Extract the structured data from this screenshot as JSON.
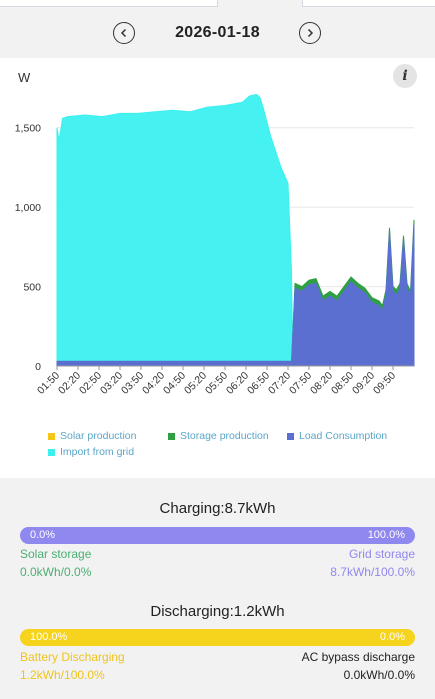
{
  "header": {
    "date": "2026-01-18",
    "prev_icon": "chevron-left-icon",
    "next_icon": "chevron-right-icon"
  },
  "chart_data": {
    "type": "area",
    "ylabel": "W",
    "ylim": [
      0,
      1750
    ],
    "yticks": [
      0,
      500,
      1000,
      1500
    ],
    "ytick_labels": [
      "0",
      "500",
      "1,000",
      "1,500"
    ],
    "xtick_labels": [
      "01:50",
      "02:20",
      "02:50",
      "03:20",
      "03:50",
      "04:20",
      "04:50",
      "05:20",
      "05:50",
      "06:20",
      "06:50",
      "07:20",
      "07:50",
      "08:20",
      "08:50",
      "09:20",
      "09:50"
    ],
    "x_minutes_start": 110,
    "x_minutes_end": 595,
    "grid": true,
    "legend": "bottom",
    "series": [
      {
        "name": "Solar production",
        "color": "#f5c518",
        "points": []
      },
      {
        "name": "Storage production",
        "color": "#2ea043",
        "points": [
          [
            110,
            0
          ],
          [
            445,
            0
          ],
          [
            450,
            520
          ],
          [
            460,
            500
          ],
          [
            470,
            540
          ],
          [
            480,
            550
          ],
          [
            490,
            440
          ],
          [
            500,
            470
          ],
          [
            510,
            440
          ],
          [
            520,
            500
          ],
          [
            530,
            560
          ],
          [
            540,
            520
          ],
          [
            550,
            490
          ],
          [
            560,
            430
          ],
          [
            570,
            410
          ],
          [
            575,
            380
          ],
          [
            580,
            480
          ],
          [
            585,
            870
          ],
          [
            590,
            500
          ],
          [
            595,
            480
          ],
          [
            600,
            520
          ],
          [
            605,
            820
          ],
          [
            610,
            520
          ],
          [
            615,
            470
          ],
          [
            620,
            920
          ]
        ]
      },
      {
        "name": "Load Consumption",
        "color": "#5a6fd0",
        "points": [
          [
            110,
            30
          ],
          [
            300,
            30
          ],
          [
            445,
            30
          ],
          [
            450,
            490
          ],
          [
            460,
            470
          ],
          [
            470,
            510
          ],
          [
            480,
            520
          ],
          [
            490,
            410
          ],
          [
            500,
            440
          ],
          [
            510,
            410
          ],
          [
            520,
            470
          ],
          [
            530,
            530
          ],
          [
            540,
            490
          ],
          [
            550,
            460
          ],
          [
            560,
            400
          ],
          [
            570,
            380
          ],
          [
            575,
            350
          ],
          [
            580,
            450
          ],
          [
            585,
            850
          ],
          [
            590,
            470
          ],
          [
            595,
            450
          ],
          [
            600,
            490
          ],
          [
            605,
            800
          ],
          [
            610,
            490
          ],
          [
            615,
            440
          ],
          [
            620,
            890
          ]
        ]
      },
      {
        "name": "Import from grid",
        "color": "#3cf0f0",
        "points": [
          [
            110,
            1500
          ],
          [
            113,
            1420
          ],
          [
            118,
            1560
          ],
          [
            125,
            1570
          ],
          [
            150,
            1580
          ],
          [
            175,
            1570
          ],
          [
            200,
            1590
          ],
          [
            225,
            1590
          ],
          [
            250,
            1600
          ],
          [
            275,
            1610
          ],
          [
            300,
            1600
          ],
          [
            325,
            1630
          ],
          [
            350,
            1640
          ],
          [
            375,
            1660
          ],
          [
            385,
            1700
          ],
          [
            395,
            1710
          ],
          [
            400,
            1690
          ],
          [
            405,
            1620
          ],
          [
            415,
            1450
          ],
          [
            430,
            1250
          ],
          [
            440,
            1150
          ],
          [
            445,
            600
          ],
          [
            447,
            0
          ]
        ]
      }
    ]
  },
  "legend_items": [
    "Solar production",
    "Storage production",
    "Load Consumption",
    "Import from grid"
  ],
  "charging": {
    "title": "Charging:8.7kWh",
    "bar_left": "0.0%",
    "bar_right": "100.0%",
    "left_label": "Solar storage",
    "left_value": "0.0kWh/0.0%",
    "right_label": "Grid storage",
    "right_value": "8.7kWh/100.0%",
    "grid_fraction": 1.0,
    "color_bar": "#8f88ee",
    "color_left": "#4caf73",
    "color_right": "#8f88ee"
  },
  "discharging": {
    "title": "Discharging:1.2kWh",
    "bar_left": "100.0%",
    "bar_right": "0.0%",
    "left_label": "Battery Discharging",
    "left_value": "1.2kWh/100.0%",
    "right_label": "AC bypass discharge",
    "right_value": "0.0kWh/0.0%",
    "battery_fraction": 1.0,
    "color_bar": "#f6d31c",
    "color_left": "#f0c419",
    "color_right": "#222222"
  },
  "info_icon": "info-icon"
}
